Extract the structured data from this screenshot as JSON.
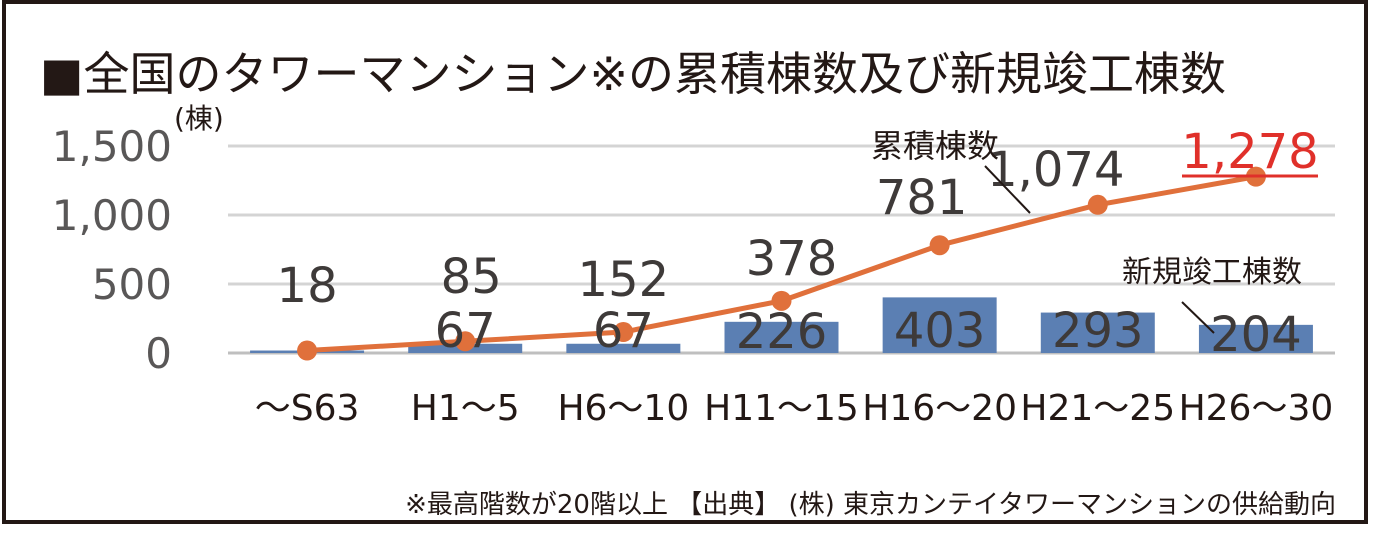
{
  "chart_data": {
    "type": "bar+line",
    "title": "■全国のタワーマンション※の累積棟数及び新規竣工棟数",
    "ylabel": "(棟)",
    "ylim": [
      0,
      1500
    ],
    "yticks": [
      0,
      500,
      1000,
      1500
    ],
    "ytick_labels": [
      "0",
      "500",
      "1,000",
      "1,500"
    ],
    "grid": true,
    "categories": [
      "～S63",
      "H1～5",
      "H6～10",
      "H11～15",
      "H16～20",
      "H21～25",
      "H26～30"
    ],
    "series": [
      {
        "name": "新規竣工棟数",
        "type": "bar",
        "color": "#5b7fb3",
        "values": [
          18,
          67,
          67,
          226,
          403,
          293,
          204
        ],
        "labels": [
          "",
          "67",
          "67",
          "226",
          "403",
          "293",
          "204"
        ]
      },
      {
        "name": "累積棟数",
        "type": "line",
        "color": "#e0703b",
        "values": [
          18,
          85,
          152,
          378,
          781,
          1074,
          1278
        ],
        "labels": [
          "18",
          "85",
          "152",
          "378",
          "781",
          "1,074",
          "1,278"
        ],
        "highlight_label_color": "#e0302a"
      }
    ],
    "footnote": "※最高階数が20階以上 【出典】 (株) 東京カンテイタワーマンションの供給動向"
  }
}
